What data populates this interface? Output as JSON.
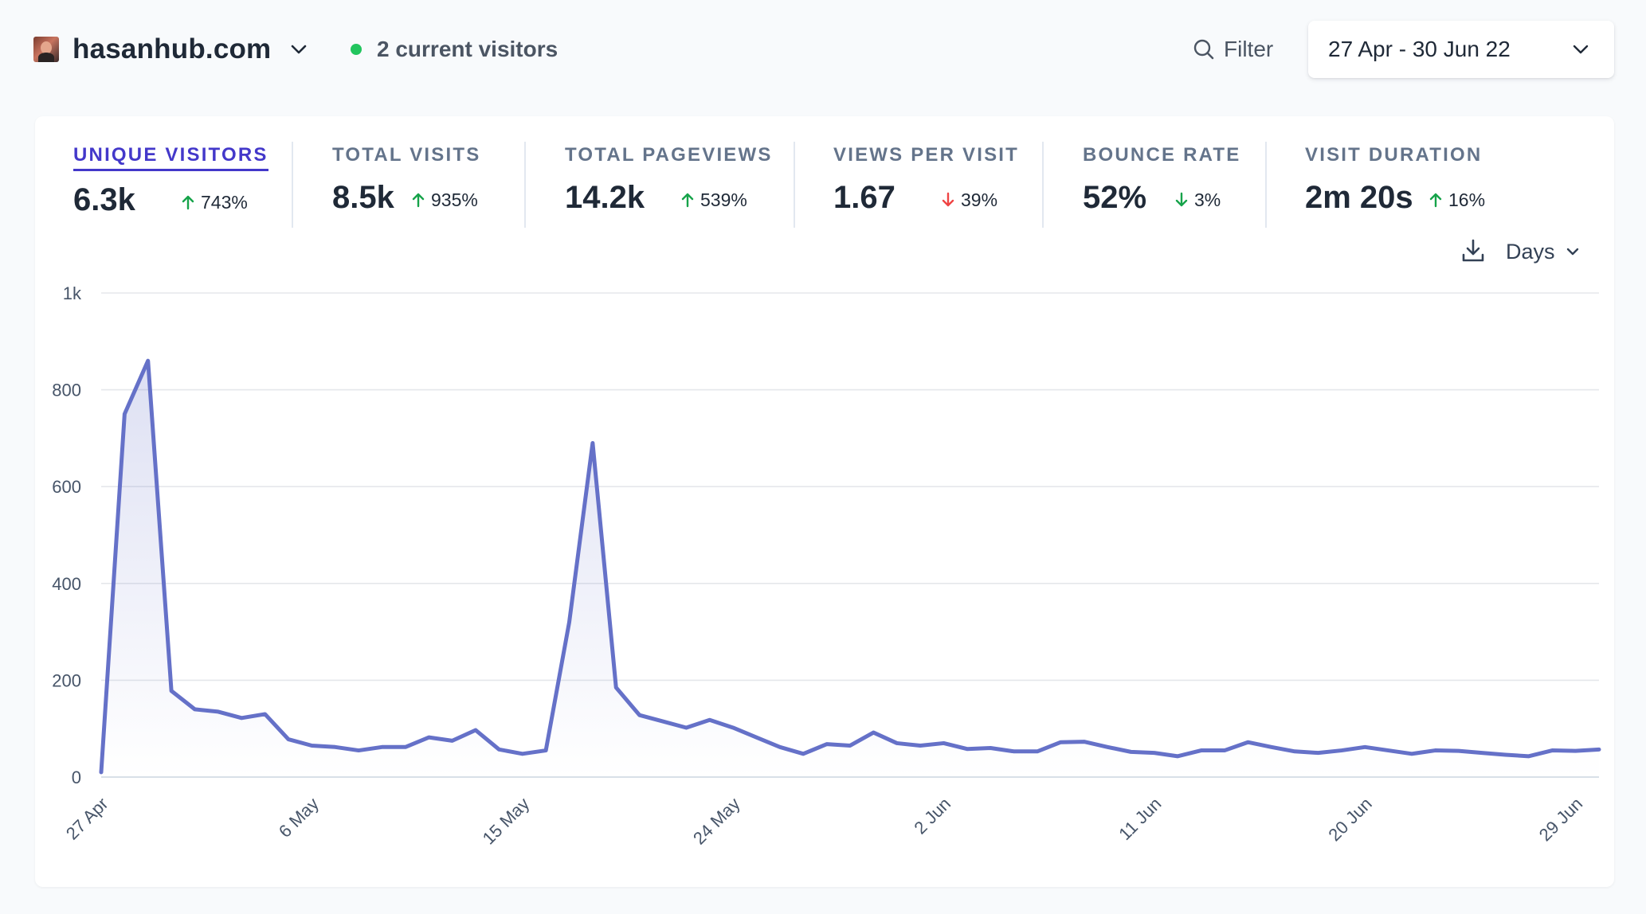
{
  "site": {
    "name": "hasanhub.com",
    "current_visitors": "2 current visitors"
  },
  "toolbar": {
    "filter_label": "Filter",
    "date_range": "27 Apr - 30 Jun 22"
  },
  "metrics": [
    {
      "label": "UNIQUE VISITORS",
      "value": "6.3k",
      "change": "743%",
      "direction": "up",
      "active": true
    },
    {
      "label": "TOTAL VISITS",
      "value": "8.5k",
      "change": "935%",
      "direction": "up",
      "active": false
    },
    {
      "label": "TOTAL PAGEVIEWS",
      "value": "14.2k",
      "change": "539%",
      "direction": "up",
      "active": false
    },
    {
      "label": "VIEWS PER VISIT",
      "value": "1.67",
      "change": "39%",
      "direction": "down",
      "active": false
    },
    {
      "label": "BOUNCE RATE",
      "value": "52%",
      "change": "3%",
      "direction": "down",
      "active": false
    },
    {
      "label": "VISIT DURATION",
      "value": "2m 20s",
      "change": "16%",
      "direction": "up",
      "active": false
    }
  ],
  "chart_controls": {
    "interval_label": "Days"
  },
  "colors": {
    "line": "#6571c8",
    "fill_top": "#6571c8",
    "up_arrow": "#16a34a",
    "down_arrow": "#ef4444",
    "active_metric": "#4338ca",
    "live_dot": "#22c55e"
  },
  "chart_data": {
    "type": "area",
    "title": "",
    "xlabel": "",
    "ylabel": "",
    "ylim": [
      0,
      1000
    ],
    "y_ticks": [
      0,
      200,
      400,
      600,
      800,
      1000
    ],
    "y_tick_labels": [
      "0",
      "200",
      "400",
      "600",
      "800",
      "1k"
    ],
    "x_tick_labels": [
      {
        "index": 0,
        "label": "27 Apr"
      },
      {
        "index": 9,
        "label": "6 May"
      },
      {
        "index": 18,
        "label": "15 May"
      },
      {
        "index": 27,
        "label": "24 May"
      },
      {
        "index": 36,
        "label": "2 Jun"
      },
      {
        "index": 45,
        "label": "11 Jun"
      },
      {
        "index": 54,
        "label": "20 Jun"
      },
      {
        "index": 63,
        "label": "29 Jun"
      }
    ],
    "grid": true,
    "series": [
      {
        "name": "Unique visitors",
        "values": [
          10,
          750,
          860,
          178,
          140,
          135,
          122,
          130,
          78,
          65,
          62,
          55,
          62,
          62,
          82,
          75,
          97,
          57,
          48,
          55,
          320,
          690,
          185,
          128,
          115,
          102,
          118,
          102,
          82,
          62,
          48,
          68,
          65,
          92,
          70,
          65,
          70,
          58,
          60,
          53,
          53,
          72,
          73,
          62,
          52,
          50,
          43,
          55,
          55,
          72,
          62,
          53,
          50,
          55,
          62,
          55,
          48,
          55,
          54,
          50,
          46,
          43,
          55,
          54,
          57
        ]
      }
    ]
  }
}
